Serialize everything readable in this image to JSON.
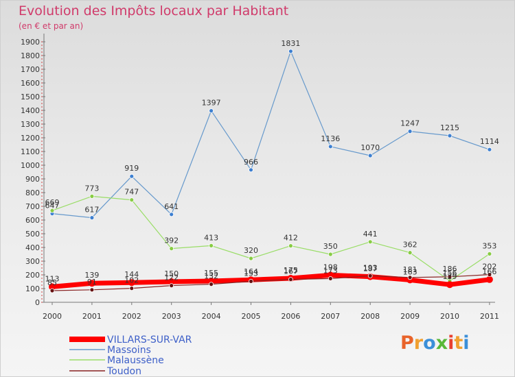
{
  "chart_data": {
    "type": "line",
    "title": "Evolution des Impôts locaux par Habitant",
    "subtitle": "(en € et par an)",
    "xlabel": "",
    "ylabel": "",
    "categories": [
      "2000",
      "2001",
      "2002",
      "2003",
      "2004",
      "2005",
      "2006",
      "2007",
      "2008",
      "2009",
      "2010",
      "2011"
    ],
    "ylim": [
      0,
      1900
    ],
    "yticks": [
      0,
      100,
      200,
      300,
      400,
      500,
      600,
      700,
      800,
      900,
      1000,
      1100,
      1200,
      1300,
      1400,
      1500,
      1600,
      1700,
      1800,
      1900
    ],
    "grid": false,
    "legend_position": "bottom-left",
    "series": [
      {
        "name": "VILLARS-SUR-VAR",
        "color": "#ff0000",
        "values": [
          113,
          139,
          144,
          150,
          155,
          164,
          175,
          198,
          187,
          163,
          129,
          166
        ],
        "labels": [
          "113",
          "139",
          "144",
          "150",
          "155",
          "164",
          "175",
          "198",
          "187",
          "163",
          "129",
          "166"
        ]
      },
      {
        "name": "Massoins",
        "color": "#6699cc",
        "values": [
          647,
          617,
          919,
          641,
          1397,
          966,
          1831,
          1136,
          1070,
          1247,
          1215,
          1114
        ],
        "labels": [
          "647",
          "617",
          "919",
          "641",
          "1397",
          "966",
          "1831",
          "1136",
          "1070",
          "1247",
          "1215",
          "1114"
        ]
      },
      {
        "name": "Malaussène",
        "color": "#99dd66",
        "values": [
          669,
          773,
          747,
          392,
          413,
          320,
          412,
          350,
          441,
          362,
          156,
          353
        ],
        "labels": [
          "669",
          "773",
          "747",
          "392",
          "413",
          "320",
          "412",
          "350",
          "441",
          "362",
          "156",
          "353"
        ]
      },
      {
        "name": "Toudon",
        "color": "#882222",
        "values": [
          85,
          91,
          102,
          122,
          132,
          153,
          167,
          173,
          193,
          181,
          186,
          202
        ],
        "labels": [
          "85",
          "91",
          "102",
          "122",
          "132",
          "153",
          "167",
          "173",
          "193",
          "181",
          "186",
          "202"
        ]
      }
    ]
  },
  "logo": {
    "text": "Proxiti",
    "letters": [
      "P",
      "r",
      "o",
      "x",
      "i",
      "t",
      "i"
    ],
    "colors": [
      "#e8632a",
      "#f0a030",
      "#3b8fd8",
      "#58b838",
      "#e84030",
      "#f0a030",
      "#3b8fd8"
    ]
  }
}
